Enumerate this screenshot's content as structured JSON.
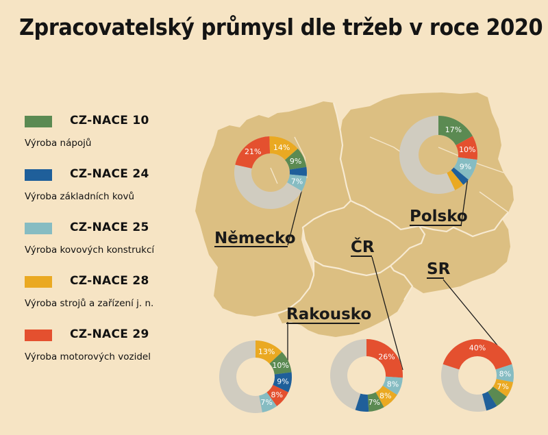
{
  "title": "Zpracovatelský průmysl dle tržeb v roce 2020",
  "legend": [
    {
      "code": "CZ-NACE 10",
      "desc": "Výroba nápojů",
      "color": "#5b8a52"
    },
    {
      "code": "CZ-NACE 24",
      "desc": "Výroba základních kovů",
      "color": "#1f5f9a"
    },
    {
      "code": "CZ-NACE 25",
      "desc": "Výroba kovových konstrukcí",
      "color": "#86bcc2"
    },
    {
      "code": "CZ-NACE 28",
      "desc": "Výroba strojů a zařízení j. n.",
      "color": "#eaa922"
    },
    {
      "code": "CZ-NACE 29",
      "desc": "Výroba motorových vozidel",
      "color": "#e4502f"
    }
  ],
  "other_color": "#d0ccc0",
  "map_colors": {
    "land": "#dcbf82",
    "border": "#f7ead2"
  },
  "chart_data": [
    {
      "type": "pie",
      "country": "Německo",
      "series": [
        {
          "name": "CZ-NACE 29",
          "value": 21
        },
        {
          "name": "CZ-NACE 28",
          "value": 14
        },
        {
          "name": "CZ-NACE 10",
          "value": 9
        },
        {
          "name": "CZ-NACE 24",
          "value": 4
        },
        {
          "name": "CZ-NACE 25",
          "value": 7
        }
      ]
    },
    {
      "type": "pie",
      "country": "Polsko",
      "series": [
        {
          "name": "CZ-NACE 10",
          "value": 17
        },
        {
          "name": "CZ-NACE 29",
          "value": 10
        },
        {
          "name": "CZ-NACE 25",
          "value": 9
        },
        {
          "name": "CZ-NACE 24",
          "value": 3
        },
        {
          "name": "CZ-NACE 28",
          "value": 4
        }
      ]
    },
    {
      "type": "pie",
      "country": "Rakousko",
      "series": [
        {
          "name": "CZ-NACE 28",
          "value": 13
        },
        {
          "name": "CZ-NACE 10",
          "value": 10
        },
        {
          "name": "CZ-NACE 24",
          "value": 9
        },
        {
          "name": "CZ-NACE 29",
          "value": 8
        },
        {
          "name": "CZ-NACE 25",
          "value": 7
        }
      ]
    },
    {
      "type": "pie",
      "country": "ČR",
      "series": [
        {
          "name": "CZ-NACE 29",
          "value": 26
        },
        {
          "name": "CZ-NACE 25",
          "value": 8
        },
        {
          "name": "CZ-NACE 28",
          "value": 8
        },
        {
          "name": "CZ-NACE 10",
          "value": 7
        },
        {
          "name": "CZ-NACE 24",
          "value": 6
        }
      ]
    },
    {
      "type": "pie",
      "country": "SR",
      "series": [
        {
          "name": "CZ-NACE 29",
          "value": 40
        },
        {
          "name": "CZ-NACE 25",
          "value": 8
        },
        {
          "name": "CZ-NACE 28",
          "value": 7
        },
        {
          "name": "CZ-NACE 10",
          "value": 6
        },
        {
          "name": "CZ-NACE 24",
          "value": 5
        }
      ]
    }
  ]
}
